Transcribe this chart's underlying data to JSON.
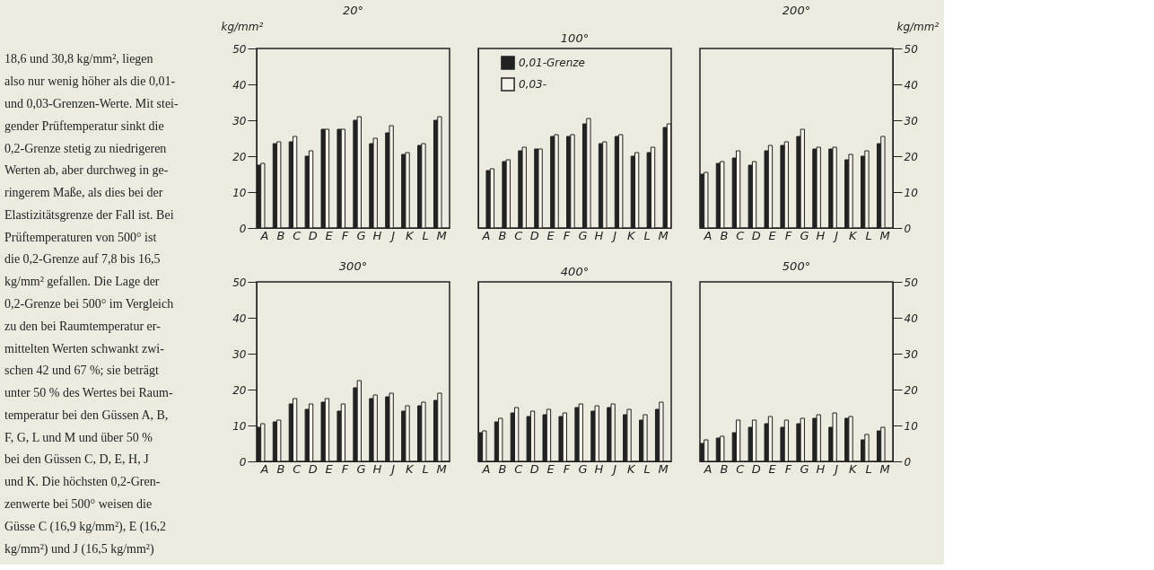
{
  "chart_data": [
    {
      "type": "other",
      "annotations": [
        "18,6 und 30,8 kg/mm², liegen",
        "also nur wenig höher als die 0,01-",
        "und 0,03-Grenzen-Werte. Mit stei-",
        "gender Prüftemperatur sinkt die",
        "0,2-Grenze stetig zu niedrigeren",
        "Werten ab, aber durchweg in ge-",
        "ringerem Maße, als dies bei der",
        "Elastizitätsgrenze der Fall ist. Bei",
        "Prüftemperaturen von 500° ist",
        "die 0,2-Grenze auf 7,8 bis 16,5",
        "kg/mm² gefallen. Die Lage der",
        "0,2-Grenze bei 500° im Vergleich",
        "zu den bei Raumtemperatur er-",
        "mittelten Werten schwankt zwi-",
        "schen 42 und 67 %; sie beträgt",
        "unter 50 % des Wertes bei Raum-",
        "temperatur bei den Güssen A, B,",
        "F, G, L und M und über 50 %",
        "bei den Güssen C, D, E, H, J",
        "und K. Die höchsten 0,2-Gren-",
        "zenwerte bei 500° weisen die",
        "Güsse C (16,9 kg/mm²), E (16,2",
        "kg/mm²) und J (16,5 kg/mm²)"
      ]
    },
    {
      "type": "bar",
      "title": "20°",
      "ylabel": "kg/mm²",
      "categories": [
        "A",
        "B",
        "C",
        "D",
        "E",
        "F",
        "G",
        "H",
        "J",
        "K",
        "L",
        "M"
      ],
      "ylim": [
        0,
        50
      ],
      "yticks": [
        0,
        10,
        20,
        30,
        40,
        50
      ],
      "series": [
        {
          "color": "#222222",
          "values": [
            17.5,
            23.5,
            24,
            20,
            27.5,
            27.5,
            30,
            23.5,
            26.5,
            20.5,
            23,
            30
          ]
        },
        {
          "color": "#f4f2e8",
          "values": [
            18,
            24,
            25.5,
            21.5,
            27.5,
            27.5,
            31,
            25,
            28.5,
            21,
            23.5,
            31
          ]
        }
      ]
    },
    {
      "type": "bar",
      "title": "100°",
      "categories": [
        "A",
        "B",
        "C",
        "D",
        "E",
        "F",
        "G",
        "H",
        "J",
        "K",
        "L",
        "M"
      ],
      "ylim": [
        0,
        50
      ],
      "yticks": [
        0,
        10,
        20,
        30,
        40,
        50
      ],
      "tick_labels": "x",
      "legend": "top left",
      "series": [
        {
          "name": "0,01-Grenze",
          "color": "#222222",
          "values": [
            16,
            18.5,
            21.5,
            22,
            25.5,
            25.5,
            29,
            23.5,
            25.5,
            20,
            21,
            28
          ]
        },
        {
          "name": "0,03-",
          "color": "#f4f2e8",
          "values": [
            16.5,
            19,
            22.5,
            22,
            26,
            26,
            30.5,
            24,
            26,
            21,
            22.5,
            29
          ]
        }
      ]
    },
    {
      "type": "bar",
      "title": "200°",
      "y2label": "kg/mm²",
      "categories": [
        "A",
        "B",
        "C",
        "D",
        "E",
        "F",
        "G",
        "H",
        "J",
        "K",
        "L",
        "M"
      ],
      "y2lim": [
        0,
        50
      ],
      "y2ticks": [
        0,
        10,
        20,
        30,
        40,
        50
      ],
      "series": [
        {
          "axis": "y2",
          "color": "#222222",
          "values": [
            15,
            18,
            19.5,
            17.5,
            21.5,
            23,
            25.5,
            22,
            22,
            19,
            20,
            23.5
          ]
        },
        {
          "axis": "y2",
          "color": "#f4f2e8",
          "values": [
            15.5,
            18.5,
            21.5,
            18.5,
            23,
            24,
            27.5,
            22.5,
            22.5,
            20.5,
            21.5,
            25.5
          ]
        }
      ]
    },
    {
      "type": "bar",
      "title": "300°",
      "categories": [
        "A",
        "B",
        "C",
        "D",
        "E",
        "F",
        "G",
        "H",
        "J",
        "K",
        "L",
        "M"
      ],
      "ylim": [
        0,
        50
      ],
      "yticks": [
        0,
        10,
        20,
        30,
        40,
        50
      ],
      "series": [
        {
          "color": "#222222",
          "values": [
            9.5,
            11,
            16,
            14.5,
            16.5,
            14,
            20.5,
            17.5,
            18,
            14,
            15.5,
            17
          ]
        },
        {
          "color": "#f4f2e8",
          "values": [
            10.5,
            11.5,
            17.5,
            16,
            17.5,
            16,
            22.5,
            18.5,
            19,
            15.5,
            16.5,
            19
          ]
        }
      ]
    },
    {
      "type": "bar",
      "title": "400°",
      "categories": [
        "A",
        "B",
        "C",
        "D",
        "E",
        "F",
        "G",
        "H",
        "J",
        "K",
        "L",
        "M"
      ],
      "ylim": [
        0,
        50
      ],
      "yticks": [
        0,
        10,
        20,
        30,
        40,
        50
      ],
      "tick_labels": "x",
      "series": [
        {
          "color": "#222222",
          "values": [
            8,
            11,
            13.5,
            12.5,
            13,
            12.5,
            15,
            14,
            15,
            13,
            11.5,
            14.5
          ]
        },
        {
          "color": "#f4f2e8",
          "values": [
            8.5,
            12,
            15,
            14,
            14.5,
            13.5,
            16,
            15.5,
            16,
            14.5,
            13,
            16.5
          ]
        }
      ]
    },
    {
      "type": "bar",
      "title": "500°",
      "categories": [
        "A",
        "B",
        "C",
        "D",
        "E",
        "F",
        "G",
        "H",
        "J",
        "K",
        "L",
        "M"
      ],
      "y2lim": [
        0,
        50
      ],
      "y2ticks": [
        0,
        10,
        20,
        30,
        40,
        50
      ],
      "series": [
        {
          "axis": "y2",
          "color": "#222222",
          "values": [
            5,
            6.5,
            8,
            9.5,
            10.5,
            9.5,
            10.5,
            12,
            9.5,
            12,
            6,
            8.5
          ]
        },
        {
          "axis": "y2",
          "color": "#f4f2e8",
          "values": [
            6,
            7,
            11.5,
            11.5,
            12.5,
            11.5,
            12,
            13,
            13.5,
            12.5,
            7.5,
            9.5
          ]
        }
      ]
    }
  ]
}
